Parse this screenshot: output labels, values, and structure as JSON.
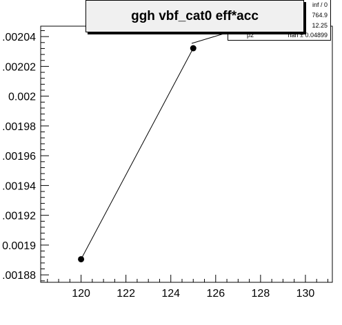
{
  "title": "ggh vbf_cat0 eff*acc",
  "stats": [
    {
      "name": "",
      "value": "inf / 0"
    },
    {
      "name": "",
      "value": "764.9"
    },
    {
      "name": "",
      "value": "12.25"
    },
    {
      "name": "p2",
      "value": "nan ± 0.04899"
    }
  ],
  "chart_data": {
    "type": "line",
    "title": "ggh vbf_cat0 eff*acc",
    "xlabel": "",
    "ylabel": "",
    "x": [
      120,
      125
    ],
    "y": [
      0.0018905,
      0.0020322
    ],
    "xlim": [
      118.2,
      131.2
    ],
    "ylim": [
      0.001875,
      0.002047
    ],
    "xticks": [
      "120",
      "122",
      "124",
      "126",
      "128",
      "130"
    ],
    "yticks": [
      ".00188",
      "0.0019",
      ".00192",
      ".00194",
      ".00196",
      ".00198",
      "0.002",
      ".00202",
      ".00204"
    ],
    "marker": "filled-circle",
    "line_color": "#000000",
    "grid": false,
    "legend": "none"
  }
}
